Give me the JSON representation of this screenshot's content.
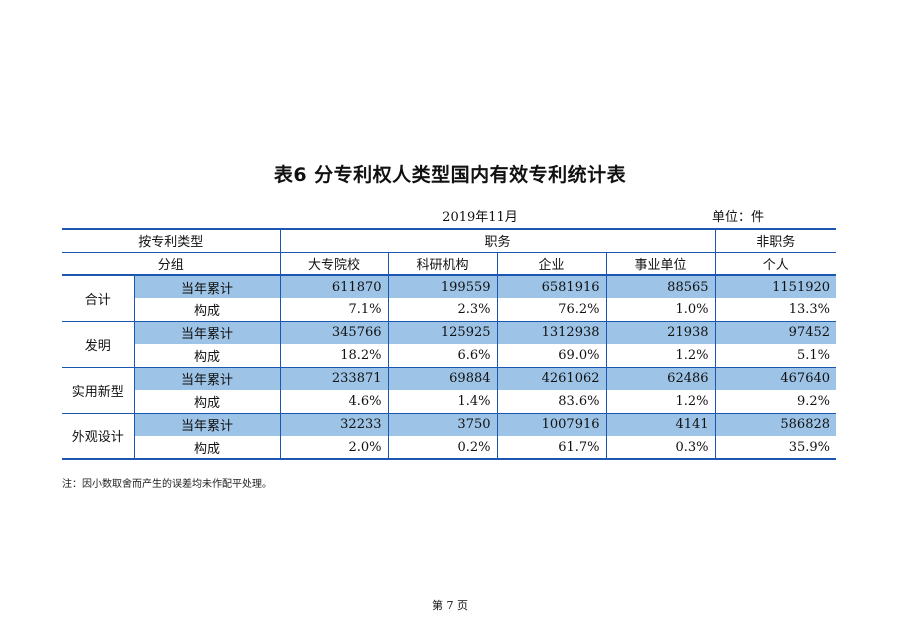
{
  "title": "表6  分专利权人类型国内有效专利统计表",
  "date": "2019年11月",
  "unit": "单位：件",
  "header": {
    "by_type": "按专利类型",
    "group": "分组",
    "duty": "职务",
    "non_duty": "非职务",
    "cols": [
      "大专院校",
      "科研机构",
      "企业",
      "事业单位",
      "个人"
    ]
  },
  "rows": [
    {
      "category": "合计",
      "year_label": "当年累计",
      "year": [
        "611870",
        "199559",
        "6581916",
        "88565",
        "1151920"
      ],
      "comp_label": "构成",
      "comp": [
        "7.1%",
        "2.3%",
        "76.2%",
        "1.0%",
        "13.3%"
      ]
    },
    {
      "category": "发明",
      "year_label": "当年累计",
      "year": [
        "345766",
        "125925",
        "1312938",
        "21938",
        "97452"
      ],
      "comp_label": "构成",
      "comp": [
        "18.2%",
        "6.6%",
        "69.0%",
        "1.2%",
        "5.1%"
      ]
    },
    {
      "category": "实用新型",
      "year_label": "当年累计",
      "year": [
        "233871",
        "69884",
        "4261062",
        "62486",
        "467640"
      ],
      "comp_label": "构成",
      "comp": [
        "4.6%",
        "1.4%",
        "83.6%",
        "1.2%",
        "9.2%"
      ]
    },
    {
      "category": "外观设计",
      "year_label": "当年累计",
      "year": [
        "32233",
        "3750",
        "1007916",
        "4141",
        "586828"
      ],
      "comp_label": "构成",
      "comp": [
        "2.0%",
        "0.2%",
        "61.7%",
        "0.3%",
        "35.9%"
      ]
    }
  ],
  "note": "注：因小数取舍而产生的误差均未作配平处理。",
  "page": "第 7 页"
}
